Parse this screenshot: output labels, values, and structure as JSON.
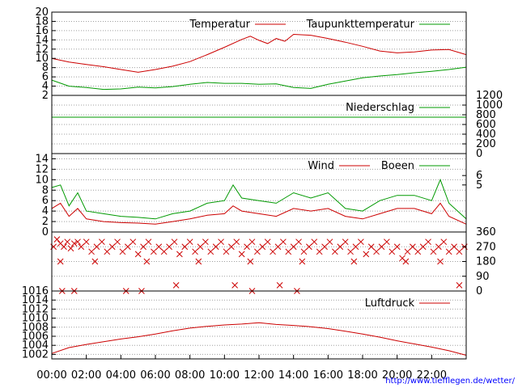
{
  "colors": {
    "temperature": "#cc0000",
    "dewpoint": "#009900",
    "precipitation": "#009900",
    "wind": "#cc0000",
    "gusts": "#009900",
    "direction": "#cc0000",
    "pressure": "#cc0000",
    "grid": "#a0a0a0",
    "url": "#0000ff"
  },
  "source_url": "http://www.tiefflegen.de/wetter/",
  "chart_data": [
    {
      "id": "temperature",
      "type": "line",
      "legend": [
        "Temperatur",
        "Taupunkttemperatur"
      ],
      "y_left_ticks": [
        "20",
        "18",
        "16",
        "14",
        "12",
        "10",
        "8",
        "6",
        "4",
        "2"
      ],
      "ylim": [
        2,
        20
      ],
      "grid": true,
      "series": [
        {
          "name": "Temperatur",
          "x_hours": [
            0,
            1,
            2,
            3,
            4,
            5,
            6,
            7,
            8,
            9,
            10,
            11,
            11.5,
            12,
            12.5,
            13,
            13.5,
            14,
            15,
            16,
            17,
            18,
            19,
            20,
            21,
            22,
            23,
            24
          ],
          "values": [
            10,
            9.2,
            8.7,
            8.2,
            7.6,
            7,
            7.6,
            8.3,
            9.3,
            10.8,
            12.4,
            14.1,
            14.8,
            13.9,
            13.2,
            14.3,
            13.7,
            15.2,
            15,
            14.3,
            13.5,
            12.6,
            11.6,
            11.2,
            11.4,
            11.8,
            11.9,
            10.8
          ]
        },
        {
          "name": "Taupunkttemperatur",
          "x_hours": [
            0,
            1,
            2,
            3,
            4,
            5,
            6,
            7,
            8,
            9,
            10,
            11,
            12,
            13,
            14,
            15,
            16,
            17,
            18,
            19,
            20,
            21,
            22,
            23,
            24
          ],
          "values": [
            5.3,
            4,
            3.7,
            3.3,
            3.4,
            3.8,
            3.6,
            3.9,
            4.4,
            4.8,
            4.6,
            4.6,
            4.4,
            4.5,
            3.7,
            3.5,
            4.4,
            5.1,
            5.8,
            6.2,
            6.5,
            6.9,
            7.2,
            7.6,
            8.1
          ]
        }
      ]
    },
    {
      "id": "precipitation",
      "type": "line",
      "legend": [
        "Niederschlag"
      ],
      "y_right_ticks": [
        "1200",
        "1000",
        "800",
        "600",
        "400",
        "200",
        "0"
      ],
      "ylim": [
        0,
        1200
      ],
      "grid": true,
      "series": [
        {
          "name": "Niederschlag",
          "x_hours": [
            0,
            24
          ],
          "values": [
            750,
            750
          ]
        }
      ]
    },
    {
      "id": "wind",
      "type": "line",
      "legend": [
        "Wind",
        "Boeen"
      ],
      "y_left_ticks": [
        "14",
        "12",
        "10",
        "8",
        "6",
        "4",
        "2",
        "0"
      ],
      "y_right_ticks": [
        "6",
        "5"
      ],
      "ylim": [
        0,
        15
      ],
      "grid": true,
      "series": [
        {
          "name": "Wind",
          "x_hours": [
            0,
            0.5,
            1,
            1.5,
            2,
            3,
            4,
            5,
            6,
            7,
            8,
            9,
            10,
            10.5,
            11,
            12,
            13,
            14,
            15,
            16,
            17,
            18,
            19,
            20,
            21,
            22,
            22.5,
            23,
            24
          ],
          "values": [
            4.5,
            5.5,
            3,
            4.5,
            2.5,
            2,
            1.8,
            1.7,
            1.5,
            2,
            2.5,
            3.2,
            3.5,
            5,
            4,
            3.5,
            3,
            4.5,
            4,
            4.5,
            3,
            2.5,
            3.5,
            4.5,
            4.5,
            3.5,
            5.5,
            3,
            1.5
          ]
        },
        {
          "name": "Boeen",
          "x_hours": [
            0,
            0.5,
            1,
            1.5,
            2,
            3,
            4,
            5,
            6,
            7,
            8,
            9,
            10,
            10.5,
            11,
            12,
            13,
            14,
            15,
            16,
            17,
            18,
            19,
            20,
            21,
            22,
            22.5,
            23,
            24
          ],
          "values": [
            8.5,
            9,
            5,
            7.5,
            4,
            3.5,
            3,
            2.8,
            2.5,
            3.5,
            4,
            5.5,
            6,
            9,
            6.5,
            6,
            5.5,
            7.5,
            6.5,
            7.5,
            4.5,
            4,
            6,
            7,
            7,
            6,
            10,
            5.5,
            2.5
          ]
        }
      ]
    },
    {
      "id": "wind-direction",
      "type": "scatter",
      "y_left_ticks": [
        "1016"
      ],
      "y_right_ticks": [
        "360",
        "270",
        "180",
        "90",
        "0"
      ],
      "ylim": [
        0,
        360
      ],
      "grid": true,
      "marker": "x",
      "points": [
        [
          0.1,
          270
        ],
        [
          0.3,
          315
        ],
        [
          0.5,
          290
        ],
        [
          0.7,
          270
        ],
        [
          0.9,
          300
        ],
        [
          1.1,
          260
        ],
        [
          1.3,
          290
        ],
        [
          1.5,
          300
        ],
        [
          1.7,
          270
        ],
        [
          2.0,
          300
        ],
        [
          2.3,
          240
        ],
        [
          2.6,
          270
        ],
        [
          2.9,
          300
        ],
        [
          3.2,
          240
        ],
        [
          3.5,
          270
        ],
        [
          3.8,
          300
        ],
        [
          4.1,
          240
        ],
        [
          4.4,
          270
        ],
        [
          4.7,
          300
        ],
        [
          5.0,
          225
        ],
        [
          5.3,
          270
        ],
        [
          5.6,
          300
        ],
        [
          5.9,
          240
        ],
        [
          6.2,
          270
        ],
        [
          6.5,
          240
        ],
        [
          6.8,
          270
        ],
        [
          7.1,
          300
        ],
        [
          7.4,
          225
        ],
        [
          7.7,
          270
        ],
        [
          8.0,
          300
        ],
        [
          8.3,
          240
        ],
        [
          8.6,
          270
        ],
        [
          8.9,
          300
        ],
        [
          9.2,
          240
        ],
        [
          9.5,
          270
        ],
        [
          9.8,
          300
        ],
        [
          10.1,
          240
        ],
        [
          10.4,
          270
        ],
        [
          10.7,
          300
        ],
        [
          11.0,
          225
        ],
        [
          11.3,
          270
        ],
        [
          11.6,
          300
        ],
        [
          11.9,
          240
        ],
        [
          12.2,
          270
        ],
        [
          12.5,
          300
        ],
        [
          12.8,
          240
        ],
        [
          13.1,
          270
        ],
        [
          13.4,
          300
        ],
        [
          13.7,
          240
        ],
        [
          14.0,
          270
        ],
        [
          14.3,
          300
        ],
        [
          14.6,
          240
        ],
        [
          14.9,
          270
        ],
        [
          15.2,
          300
        ],
        [
          15.5,
          240
        ],
        [
          15.8,
          270
        ],
        [
          16.1,
          300
        ],
        [
          16.4,
          240
        ],
        [
          16.7,
          270
        ],
        [
          17.0,
          300
        ],
        [
          17.3,
          240
        ],
        [
          17.6,
          270
        ],
        [
          17.9,
          300
        ],
        [
          18.2,
          225
        ],
        [
          18.5,
          270
        ],
        [
          18.8,
          240
        ],
        [
          19.1,
          270
        ],
        [
          19.4,
          300
        ],
        [
          19.7,
          240
        ],
        [
          20.0,
          270
        ],
        [
          20.3,
          200
        ],
        [
          20.6,
          240
        ],
        [
          20.9,
          270
        ],
        [
          21.2,
          240
        ],
        [
          21.5,
          270
        ],
        [
          21.8,
          300
        ],
        [
          22.1,
          240
        ],
        [
          22.4,
          270
        ],
        [
          22.7,
          300
        ],
        [
          23.0,
          240
        ],
        [
          23.3,
          270
        ],
        [
          23.6,
          240
        ],
        [
          23.9,
          270
        ],
        [
          0.6,
          0
        ],
        [
          1.3,
          0
        ],
        [
          4.3,
          0
        ],
        [
          5.2,
          0
        ],
        [
          11.6,
          0
        ],
        [
          14.2,
          0
        ],
        [
          7.2,
          35
        ],
        [
          10.6,
          35
        ],
        [
          13.2,
          35
        ],
        [
          23.6,
          35
        ],
        [
          0.5,
          180
        ],
        [
          2.5,
          180
        ],
        [
          5.5,
          180
        ],
        [
          8.5,
          180
        ],
        [
          11.5,
          180
        ],
        [
          14.5,
          180
        ],
        [
          17.5,
          180
        ],
        [
          20.5,
          180
        ],
        [
          22.5,
          180
        ]
      ]
    },
    {
      "id": "pressure",
      "type": "line",
      "legend": [
        "Luftdruck"
      ],
      "y_left_ticks": [
        "1014",
        "1012",
        "1010",
        "1008",
        "1006",
        "1004",
        "1002"
      ],
      "ylim": [
        1001,
        1016
      ],
      "grid": true,
      "series": [
        {
          "name": "Luftdruck",
          "x_hours": [
            0,
            1,
            2,
            3,
            4,
            5,
            6,
            7,
            8,
            9,
            10,
            11,
            12,
            13,
            14,
            15,
            16,
            17,
            18,
            19,
            20,
            21,
            22,
            23,
            24
          ],
          "values": [
            1002.2,
            1003.5,
            1004.2,
            1004.8,
            1005.4,
            1005.9,
            1006.5,
            1007.2,
            1007.8,
            1008.2,
            1008.5,
            1008.7,
            1009,
            1008.6,
            1008.4,
            1008.1,
            1007.7,
            1007.1,
            1006.5,
            1005.8,
            1005,
            1004.3,
            1003.6,
            1002.8,
            1001.8
          ]
        }
      ]
    }
  ],
  "x_axis": {
    "labels": [
      "00:00",
      "02:00",
      "04:00",
      "06:00",
      "08:00",
      "10:00",
      "12:00",
      "14:00",
      "16:00",
      "18:00",
      "20:00",
      "22:00"
    ]
  }
}
